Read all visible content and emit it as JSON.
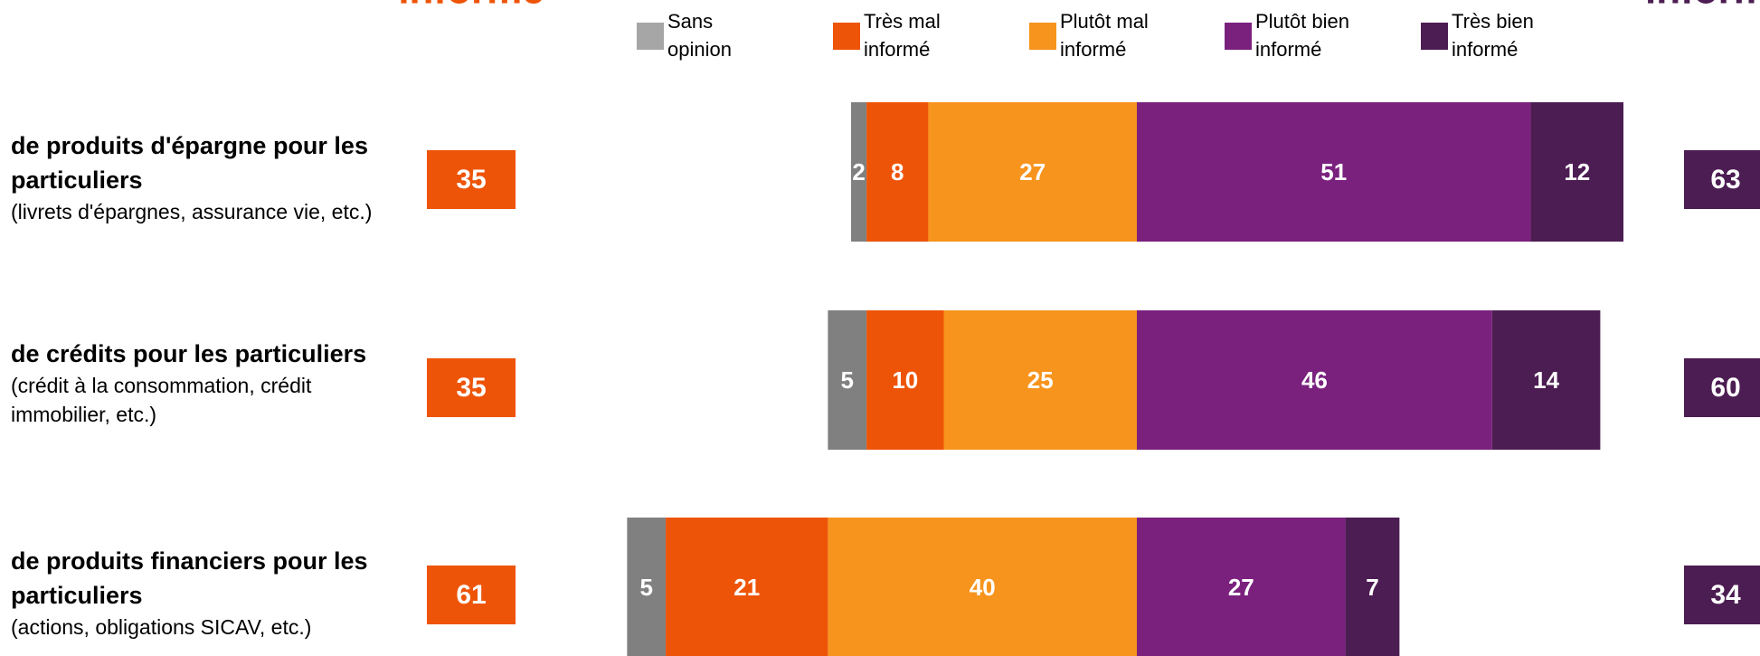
{
  "chart_data": {
    "type": "diverging-bar",
    "header_left": "informé",
    "header_right": "informé",
    "categories": [
      {
        "title": "de produits d'épargne pour les particuliers",
        "note": "(livrets d'épargnes, assurance vie, etc.)"
      },
      {
        "title": "de crédits pour les particuliers",
        "note": "(crédit à la consommation, crédit immobilier, etc.)"
      },
      {
        "title": "de produits financiers pour les particuliers",
        "note": "(actions, obligations SICAV, etc.)"
      }
    ],
    "series": [
      {
        "name": "Sans opinion",
        "color": "#808080",
        "legend_color": "#a6a6a6",
        "side": "left",
        "values": [
          2,
          5,
          5
        ]
      },
      {
        "name": "Très mal informé",
        "color": "#ee5407",
        "side": "left",
        "values": [
          8,
          10,
          21
        ]
      },
      {
        "name": "Plutôt mal informé",
        "color": "#f7941d",
        "side": "left",
        "values": [
          27,
          25,
          40
        ]
      },
      {
        "name": "Plutôt bien informé",
        "color": "#7a217e",
        "side": "right",
        "values": [
          51,
          46,
          27
        ]
      },
      {
        "name": "Très bien informé",
        "color": "#4c1d52",
        "side": "right",
        "values": [
          12,
          14,
          7
        ]
      }
    ],
    "totals_left": {
      "color": "#ee5407",
      "values": [
        35,
        35,
        61
      ]
    },
    "totals_right": {
      "color": "#4c1d52",
      "values": [
        63,
        60,
        34
      ]
    }
  }
}
